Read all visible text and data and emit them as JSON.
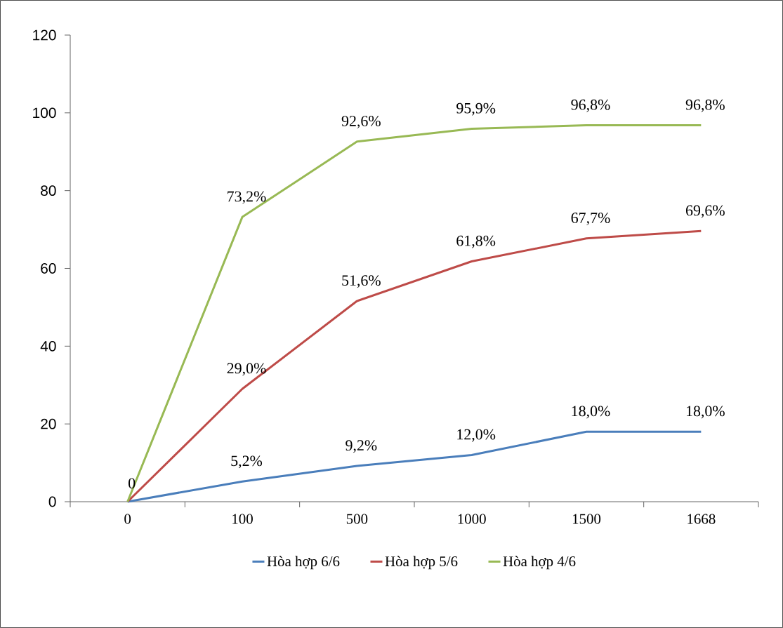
{
  "chart_data": {
    "type": "line",
    "categories": [
      "0",
      "100",
      "500",
      "1000",
      "1500",
      "1668"
    ],
    "ylim": [
      0,
      120
    ],
    "yticks": [
      0,
      20,
      40,
      60,
      80,
      100,
      120
    ],
    "grid": false,
    "legend": "bottom",
    "marker": "none",
    "line_style": "solid",
    "series": [
      {
        "name": "Hòa hợp 6/6",
        "color": "#4a7ebb",
        "values": [
          0,
          5.2,
          9.2,
          12.0,
          18.0,
          18.0
        ],
        "value_labels": [
          null,
          "5,2%",
          "9,2%",
          "12,0%",
          "18,0%",
          "18,0%"
        ]
      },
      {
        "name": "Hòa hợp 5/6",
        "color": "#be4b48",
        "values": [
          0,
          29.0,
          51.6,
          61.8,
          67.7,
          69.6
        ],
        "value_labels": [
          null,
          "29,0%",
          "51,6%",
          "61,8%",
          "67,7%",
          "69,6%"
        ]
      },
      {
        "name": "Hòa hợp 4/6",
        "color": "#98b954",
        "values": [
          0,
          73.2,
          92.6,
          95.9,
          96.8,
          96.8
        ],
        "value_labels": [
          "0",
          "73,2%",
          "92,6%",
          "95,9%",
          "96,8%",
          "96,8%"
        ]
      }
    ]
  }
}
